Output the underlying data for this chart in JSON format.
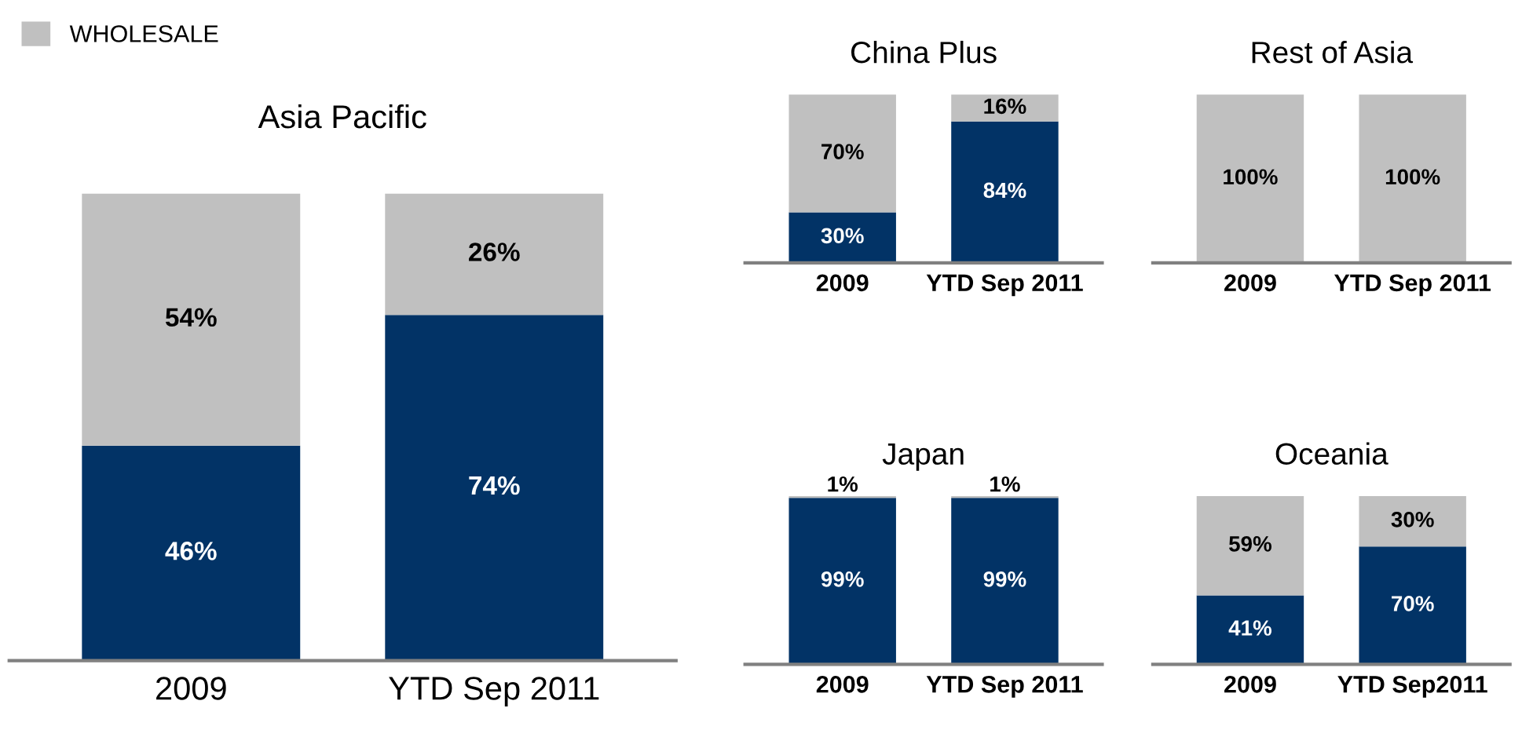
{
  "chart_data": [
    {
      "type": "bar",
      "title": "Asia Pacific",
      "categories": [
        "2009",
        "YTD Sep 2011"
      ],
      "stacked": true,
      "legend": "top left",
      "series": [
        {
          "color": "#023366",
          "values": [
            46,
            74
          ],
          "value_labels": [
            "46%",
            "74%"
          ]
        },
        {
          "name": "WHOLESALE",
          "color": "#c0c0c0",
          "values": [
            54,
            26
          ],
          "value_labels": [
            "54%",
            "26%"
          ]
        }
      ]
    },
    {
      "type": "bar",
      "title": "China Plus",
      "categories": [
        "2009",
        "YTD Sep 2011"
      ],
      "stacked": true,
      "series": [
        {
          "color": "#023366",
          "values": [
            30,
            84
          ],
          "value_labels": [
            "30%",
            "84%"
          ]
        },
        {
          "color": "#c0c0c0",
          "values": [
            70,
            16
          ],
          "value_labels": [
            "70%",
            "16%"
          ]
        }
      ]
    },
    {
      "type": "bar",
      "title": "Rest of Asia",
      "categories": [
        "2009",
        "YTD Sep 2011"
      ],
      "stacked": true,
      "series": [
        {
          "color": "#023366",
          "values": [
            0,
            0
          ],
          "value_labels": [
            null,
            null
          ]
        },
        {
          "color": "#c0c0c0",
          "values": [
            100,
            100
          ],
          "value_labels": [
            "100%",
            "100%"
          ]
        }
      ]
    },
    {
      "type": "bar",
      "title": "Japan",
      "categories": [
        "2009",
        "YTD Sep 2011"
      ],
      "stacked": true,
      "series": [
        {
          "color": "#023366",
          "values": [
            99,
            99
          ],
          "value_labels": [
            "99%",
            "99%"
          ]
        },
        {
          "color": "#c0c0c0",
          "values": [
            1,
            1
          ],
          "value_labels": [
            "1%",
            "1%"
          ]
        }
      ]
    },
    {
      "type": "bar",
      "title": "Oceania",
      "categories": [
        "2009",
        "YTD Sep2011"
      ],
      "stacked": true,
      "series": [
        {
          "color": "#023366",
          "values": [
            41,
            70
          ],
          "value_labels": [
            "41%",
            "70%"
          ]
        },
        {
          "color": "#c0c0c0",
          "values": [
            59,
            30
          ],
          "value_labels": [
            "59%",
            "30%"
          ]
        }
      ]
    }
  ]
}
